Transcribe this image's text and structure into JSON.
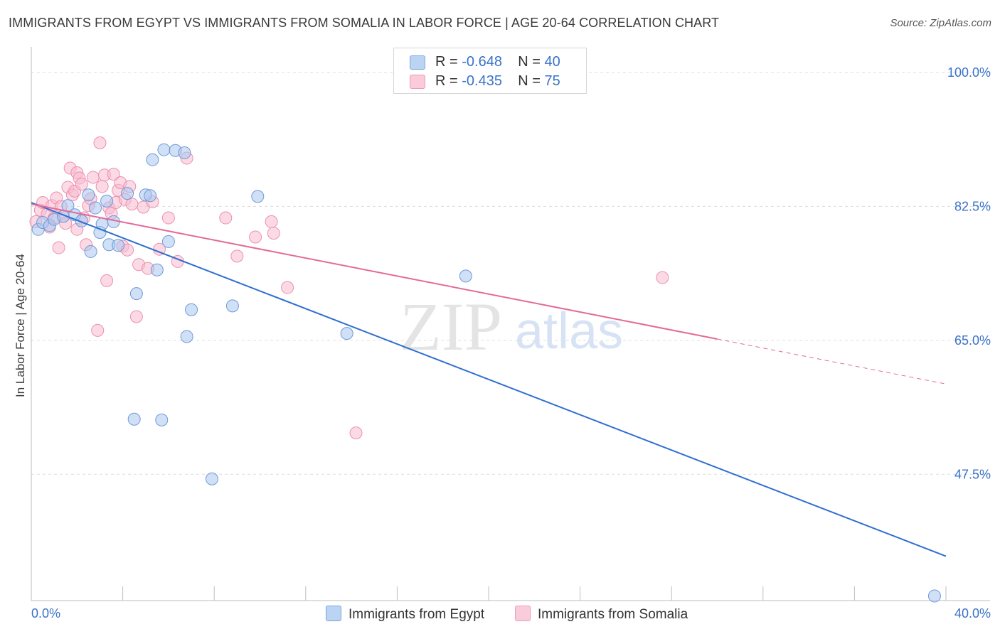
{
  "title": "IMMIGRANTS FROM EGYPT VS IMMIGRANTS FROM SOMALIA IN LABOR FORCE | AGE 20-64 CORRELATION CHART",
  "source": "Source: ZipAtlas.com",
  "watermark": {
    "zip": "ZIP",
    "atlas": "atlas"
  },
  "legend": {
    "egypt": {
      "r_label": "R = ",
      "r_value": "-0.648",
      "n_label": "N = ",
      "n_value": "40"
    },
    "somalia": {
      "r_label": "R = ",
      "r_value": "-0.435",
      "n_label": "N = ",
      "n_value": "75"
    }
  },
  "colors": {
    "egypt_fill": "#a9c6ee",
    "egypt_stroke": "#6f9ad6",
    "egypt_line": "#2f6fd0",
    "somalia_fill": "#f7bcd0",
    "somalia_stroke": "#ee8fb0",
    "somalia_line": "#e46a98",
    "tick_text": "#3a72c8",
    "grid": "#dddddd"
  },
  "chart_data": {
    "type": "scatter",
    "title": "IMMIGRANTS FROM EGYPT VS IMMIGRANTS FROM SOMALIA IN LABOR FORCE | AGE 20-64 CORRELATION CHART",
    "xlabel": "",
    "ylabel": "In Labor Force | Age 20-64",
    "xlim": [
      0,
      40
    ],
    "ylim": [
      31,
      102.5
    ],
    "x_tick_labels": [
      {
        "value": 0,
        "label": "0.0%"
      },
      {
        "value": 40,
        "label": "40.0%"
      }
    ],
    "y_tick_labels": [
      {
        "value": 100,
        "label": "100.0%"
      },
      {
        "value": 82.5,
        "label": "82.5%"
      },
      {
        "value": 65,
        "label": "65.0%"
      },
      {
        "value": 47.5,
        "label": "47.5%"
      }
    ],
    "grid": true,
    "legend_position": "top-center",
    "series": [
      {
        "name": "Immigrants from Egypt",
        "r": -0.648,
        "n": 40,
        "trend": {
          "x": [
            0,
            40
          ],
          "y": [
            83.0,
            36.8
          ],
          "dashed_from_x": null
        },
        "points": [
          {
            "x": 0.3,
            "y": 79.5
          },
          {
            "x": 0.5,
            "y": 80.4
          },
          {
            "x": 0.8,
            "y": 80.0
          },
          {
            "x": 1.0,
            "y": 80.8
          },
          {
            "x": 1.4,
            "y": 81.2
          },
          {
            "x": 1.6,
            "y": 82.6
          },
          {
            "x": 1.9,
            "y": 81.4
          },
          {
            "x": 2.2,
            "y": 80.6
          },
          {
            "x": 2.5,
            "y": 84.0
          },
          {
            "x": 2.6,
            "y": 76.6
          },
          {
            "x": 2.8,
            "y": 82.3
          },
          {
            "x": 3.0,
            "y": 79.1
          },
          {
            "x": 3.1,
            "y": 80.2
          },
          {
            "x": 3.3,
            "y": 83.2
          },
          {
            "x": 3.4,
            "y": 77.5
          },
          {
            "x": 3.6,
            "y": 80.5
          },
          {
            "x": 3.8,
            "y": 77.4
          },
          {
            "x": 4.2,
            "y": 84.2
          },
          {
            "x": 4.5,
            "y": 54.7
          },
          {
            "x": 4.6,
            "y": 71.1
          },
          {
            "x": 5.0,
            "y": 84.0
          },
          {
            "x": 5.2,
            "y": 83.9
          },
          {
            "x": 5.3,
            "y": 88.6
          },
          {
            "x": 5.5,
            "y": 74.2
          },
          {
            "x": 5.7,
            "y": 54.6
          },
          {
            "x": 5.8,
            "y": 89.9
          },
          {
            "x": 6.0,
            "y": 77.9
          },
          {
            "x": 6.3,
            "y": 89.8
          },
          {
            "x": 6.7,
            "y": 89.5
          },
          {
            "x": 6.8,
            "y": 65.5
          },
          {
            "x": 7.0,
            "y": 69.0
          },
          {
            "x": 7.9,
            "y": 46.9
          },
          {
            "x": 8.8,
            "y": 69.5
          },
          {
            "x": 9.9,
            "y": 83.8
          },
          {
            "x": 13.8,
            "y": 65.9
          },
          {
            "x": 19.0,
            "y": 73.4
          },
          {
            "x": 39.5,
            "y": 31.6
          }
        ]
      },
      {
        "name": "Immigrants from Somalia",
        "r": -0.435,
        "n": 75,
        "trend": {
          "x": [
            0,
            40
          ],
          "y": [
            82.8,
            59.3
          ],
          "dashed_from_x": 30.0
        },
        "points": [
          {
            "x": 0.2,
            "y": 80.5
          },
          {
            "x": 0.4,
            "y": 82.0
          },
          {
            "x": 0.5,
            "y": 83.0
          },
          {
            "x": 0.7,
            "y": 81.5
          },
          {
            "x": 0.8,
            "y": 79.8
          },
          {
            "x": 0.9,
            "y": 82.6
          },
          {
            "x": 1.0,
            "y": 81.0
          },
          {
            "x": 1.1,
            "y": 83.6
          },
          {
            "x": 1.2,
            "y": 77.1
          },
          {
            "x": 1.3,
            "y": 82.5
          },
          {
            "x": 1.4,
            "y": 81.2
          },
          {
            "x": 1.5,
            "y": 80.3
          },
          {
            "x": 1.6,
            "y": 85.0
          },
          {
            "x": 1.7,
            "y": 87.5
          },
          {
            "x": 1.8,
            "y": 84.0
          },
          {
            "x": 1.9,
            "y": 84.5
          },
          {
            "x": 2.0,
            "y": 86.9
          },
          {
            "x": 2.0,
            "y": 79.5
          },
          {
            "x": 2.1,
            "y": 86.2
          },
          {
            "x": 2.2,
            "y": 85.4
          },
          {
            "x": 2.3,
            "y": 81.0
          },
          {
            "x": 2.4,
            "y": 77.5
          },
          {
            "x": 2.5,
            "y": 82.6
          },
          {
            "x": 2.6,
            "y": 83.5
          },
          {
            "x": 2.7,
            "y": 86.3
          },
          {
            "x": 2.9,
            "y": 66.3
          },
          {
            "x": 3.0,
            "y": 90.8
          },
          {
            "x": 3.1,
            "y": 85.1
          },
          {
            "x": 3.2,
            "y": 86.6
          },
          {
            "x": 3.3,
            "y": 72.8
          },
          {
            "x": 3.4,
            "y": 82.3
          },
          {
            "x": 3.5,
            "y": 81.6
          },
          {
            "x": 3.6,
            "y": 86.7
          },
          {
            "x": 3.7,
            "y": 83.0
          },
          {
            "x": 3.8,
            "y": 84.6
          },
          {
            "x": 3.9,
            "y": 85.6
          },
          {
            "x": 4.0,
            "y": 77.3
          },
          {
            "x": 4.1,
            "y": 83.4
          },
          {
            "x": 4.2,
            "y": 76.8
          },
          {
            "x": 4.3,
            "y": 85.1
          },
          {
            "x": 4.4,
            "y": 82.8
          },
          {
            "x": 4.6,
            "y": 68.1
          },
          {
            "x": 4.7,
            "y": 74.9
          },
          {
            "x": 4.9,
            "y": 82.4
          },
          {
            "x": 5.1,
            "y": 74.4
          },
          {
            "x": 5.3,
            "y": 83.1
          },
          {
            "x": 5.6,
            "y": 76.9
          },
          {
            "x": 6.0,
            "y": 81.0
          },
          {
            "x": 6.4,
            "y": 75.3
          },
          {
            "x": 6.8,
            "y": 88.8
          },
          {
            "x": 8.5,
            "y": 81.0
          },
          {
            "x": 9.0,
            "y": 76.0
          },
          {
            "x": 9.8,
            "y": 78.5
          },
          {
            "x": 10.5,
            "y": 80.5
          },
          {
            "x": 10.6,
            "y": 79.0
          },
          {
            "x": 11.2,
            "y": 71.9
          },
          {
            "x": 14.2,
            "y": 52.9
          },
          {
            "x": 27.6,
            "y": 73.2
          }
        ]
      }
    ]
  },
  "bottom_legend": {
    "egypt": "Immigrants from Egypt",
    "somalia": "Immigrants from Somalia"
  }
}
